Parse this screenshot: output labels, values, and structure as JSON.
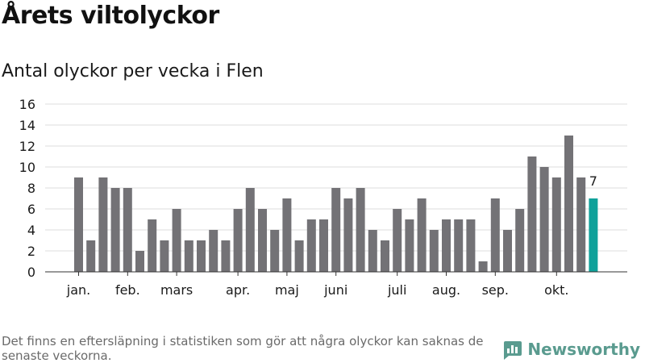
{
  "title": "Årets viltolyckor",
  "subtitle": "Antal olyckor per vecka i Flen",
  "footnote": "Det finns en eftersläpning i statistiken som gör att några olyckor kan saknas de senaste veckorna.",
  "brand": {
    "name": "Newsworthy",
    "color": "#5a9b8f"
  },
  "colors": {
    "bar": "#737276",
    "highlight": "#0fa19a",
    "grid": "#dddddd",
    "axis": "#333333"
  },
  "chart_data": {
    "type": "bar",
    "title": "Antal olyckor per vecka i Flen",
    "xlabel": "",
    "ylabel": "",
    "ylim": [
      0,
      16
    ],
    "yticks": [
      0,
      2,
      4,
      6,
      8,
      10,
      12,
      14,
      16
    ],
    "grid": true,
    "weeks": [
      1,
      2,
      3,
      4,
      5,
      6,
      7,
      8,
      9,
      10,
      11,
      12,
      13,
      14,
      15,
      16,
      17,
      18,
      19,
      20,
      21,
      22,
      23,
      24,
      25,
      26,
      27,
      28,
      29,
      30,
      31,
      32,
      33,
      34,
      35,
      36,
      37,
      38,
      39,
      40,
      41,
      42,
      43
    ],
    "values": [
      9,
      3,
      9,
      8,
      8,
      2,
      5,
      3,
      6,
      3,
      3,
      4,
      3,
      6,
      8,
      6,
      4,
      7,
      3,
      5,
      5,
      8,
      7,
      8,
      4,
      3,
      6,
      5,
      7,
      4,
      5,
      5,
      5,
      1,
      7,
      4,
      6,
      11,
      10,
      9,
      13,
      9,
      7
    ],
    "highlight_index": 42,
    "highlight_label": "7",
    "month_labels": [
      {
        "label": "jan.",
        "week": 1
      },
      {
        "label": "feb.",
        "week": 5
      },
      {
        "label": "mars",
        "week": 9
      },
      {
        "label": "apr.",
        "week": 14
      },
      {
        "label": "maj",
        "week": 18
      },
      {
        "label": "juni",
        "week": 22
      },
      {
        "label": "juli",
        "week": 27
      },
      {
        "label": "aug.",
        "week": 31
      },
      {
        "label": "sep.",
        "week": 35
      },
      {
        "label": "okt.",
        "week": 40
      }
    ]
  }
}
